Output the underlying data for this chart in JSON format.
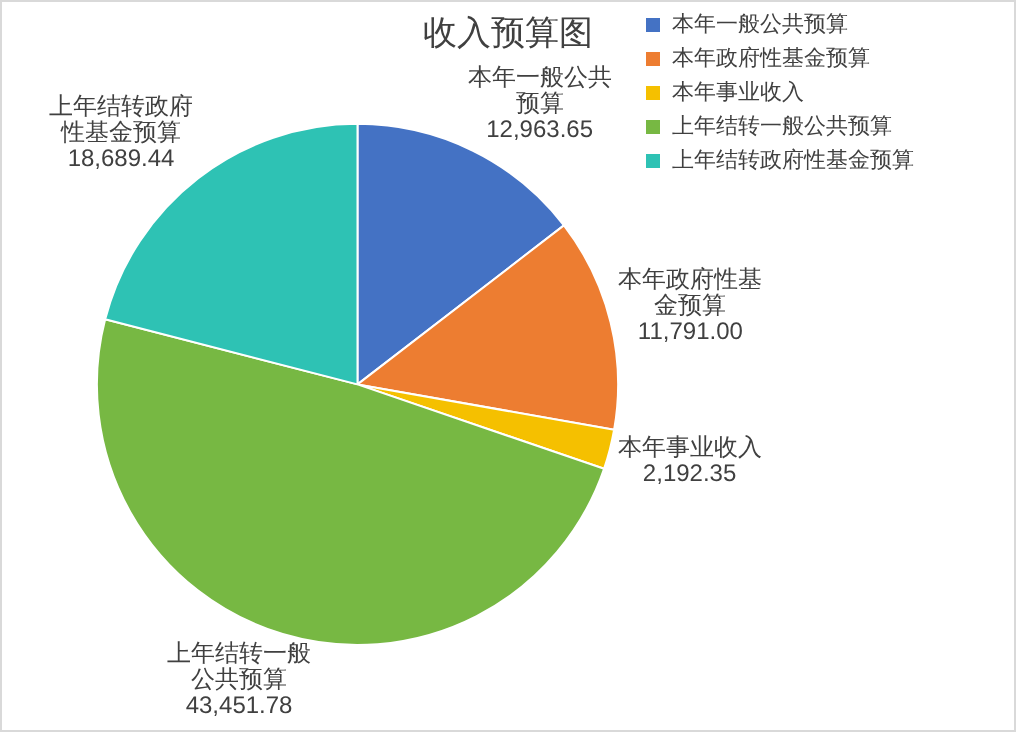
{
  "chart_data": {
    "type": "pie",
    "title": "收入预算图",
    "categories": [
      "本年一般公共预算",
      "本年政府性基金预算",
      "本年事业收入",
      "上年结转一般公共预算",
      "上年结转政府性基金预算"
    ],
    "values": [
      12963.65,
      11791.0,
      2192.35,
      43451.78,
      18689.44
    ],
    "value_labels": [
      "12,963.65",
      "11,791.00",
      "2,192.35",
      "43,451.78",
      "18,689.44"
    ],
    "colors": [
      "#4472c4",
      "#ed7d31",
      "#f5c000",
      "#77b843",
      "#2ec2b4"
    ],
    "legend": "top right"
  }
}
